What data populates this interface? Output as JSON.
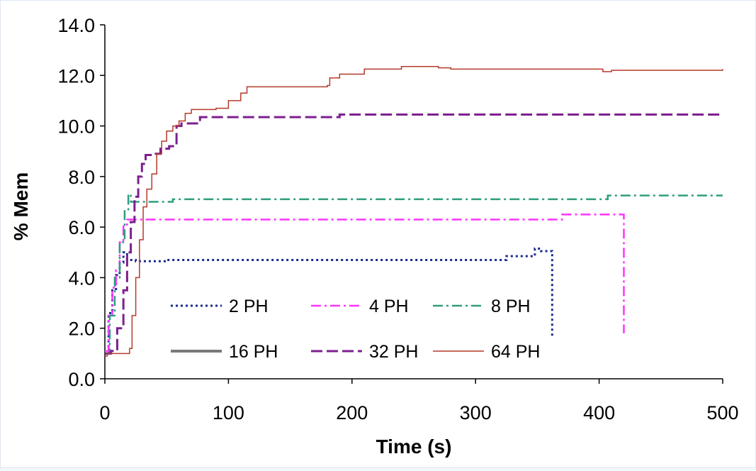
{
  "chart_data": {
    "type": "line",
    "xlabel": "Time (s)",
    "ylabel": "% Mem",
    "xlim": [
      0,
      500
    ],
    "ylim": [
      0,
      14
    ],
    "x_ticks": [
      "0",
      "100",
      "200",
      "300",
      "400",
      "500"
    ],
    "y_ticks": [
      "0.0",
      "2.0",
      "4.0",
      "6.0",
      "8.0",
      "10.0",
      "12.0",
      "14.0"
    ],
    "grid": false,
    "legend_position": "inside-bottom-left",
    "series": [
      {
        "name": "2 PH",
        "color": "#1a2a8c",
        "dash": "dotted",
        "points": [
          [
            0,
            1.0
          ],
          [
            3,
            2.6
          ],
          [
            6,
            3.5
          ],
          [
            9,
            4.1
          ],
          [
            12,
            4.6
          ],
          [
            15,
            5.0
          ],
          [
            18,
            4.7
          ],
          [
            25,
            4.65
          ],
          [
            50,
            4.7
          ],
          [
            200,
            4.7
          ],
          [
            320,
            4.7
          ],
          [
            325,
            4.85
          ],
          [
            345,
            4.85
          ],
          [
            348,
            5.15
          ],
          [
            353,
            5.05
          ],
          [
            362,
            5.05
          ],
          [
            362,
            1.6
          ]
        ]
      },
      {
        "name": "4 PH",
        "color": "#ff33ff",
        "dash": "dashdot",
        "points": [
          [
            0,
            1.1
          ],
          [
            3,
            2.5
          ],
          [
            6,
            3.6
          ],
          [
            9,
            4.3
          ],
          [
            12,
            5.4
          ],
          [
            15,
            6.1
          ],
          [
            18,
            6.3
          ],
          [
            50,
            6.3
          ],
          [
            200,
            6.3
          ],
          [
            366,
            6.3
          ],
          [
            370,
            6.5
          ],
          [
            418,
            6.5
          ],
          [
            420,
            6.2
          ],
          [
            420,
            1.8
          ]
        ]
      },
      {
        "name": "8 PH",
        "color": "#2e9e7e",
        "dash": "dashdot",
        "points": [
          [
            0,
            1.0
          ],
          [
            4,
            2.5
          ],
          [
            8,
            4.0
          ],
          [
            12,
            5.4
          ],
          [
            16,
            6.7
          ],
          [
            19,
            7.3
          ],
          [
            21,
            7.0
          ],
          [
            50,
            7.0
          ],
          [
            55,
            7.1
          ],
          [
            300,
            7.1
          ],
          [
            405,
            7.1
          ],
          [
            407,
            7.25
          ],
          [
            500,
            7.25
          ]
        ]
      },
      {
        "name": "16 PH",
        "color": "#7a7a7a",
        "dash": "solid-gray",
        "points": []
      },
      {
        "name": "32 PH",
        "color": "#7d1f8f",
        "dash": "dashed",
        "points": [
          [
            0,
            1.0
          ],
          [
            5,
            1.1
          ],
          [
            10,
            2.0
          ],
          [
            15,
            3.5
          ],
          [
            18,
            5.0
          ],
          [
            21,
            6.2
          ],
          [
            24,
            7.2
          ],
          [
            27,
            8.0
          ],
          [
            30,
            8.5
          ],
          [
            33,
            8.85
          ],
          [
            40,
            8.9
          ],
          [
            45,
            9.1
          ],
          [
            52,
            9.2
          ],
          [
            58,
            10.0
          ],
          [
            62,
            10.1
          ],
          [
            72,
            10.1
          ],
          [
            77,
            10.35
          ],
          [
            185,
            10.35
          ],
          [
            190,
            10.45
          ],
          [
            500,
            10.45
          ]
        ]
      },
      {
        "name": "64 PH",
        "color": "#b53a2a",
        "dash": "solid",
        "points": [
          [
            0,
            0.9
          ],
          [
            2,
            1.0
          ],
          [
            15,
            1.0
          ],
          [
            20,
            1.2
          ],
          [
            22,
            2.5
          ],
          [
            25,
            4.0
          ],
          [
            28,
            5.5
          ],
          [
            31,
            6.8
          ],
          [
            34,
            7.5
          ],
          [
            38,
            8.1
          ],
          [
            42,
            8.9
          ],
          [
            46,
            9.4
          ],
          [
            50,
            9.8
          ],
          [
            55,
            10.0
          ],
          [
            60,
            10.2
          ],
          [
            65,
            10.5
          ],
          [
            70,
            10.65
          ],
          [
            90,
            10.7
          ],
          [
            100,
            11.0
          ],
          [
            110,
            11.3
          ],
          [
            115,
            11.55
          ],
          [
            180,
            11.6
          ],
          [
            182,
            11.9
          ],
          [
            190,
            12.05
          ],
          [
            210,
            12.25
          ],
          [
            240,
            12.35
          ],
          [
            270,
            12.3
          ],
          [
            280,
            12.25
          ],
          [
            400,
            12.25
          ],
          [
            403,
            12.15
          ],
          [
            410,
            12.2
          ],
          [
            500,
            12.25
          ]
        ]
      }
    ]
  }
}
